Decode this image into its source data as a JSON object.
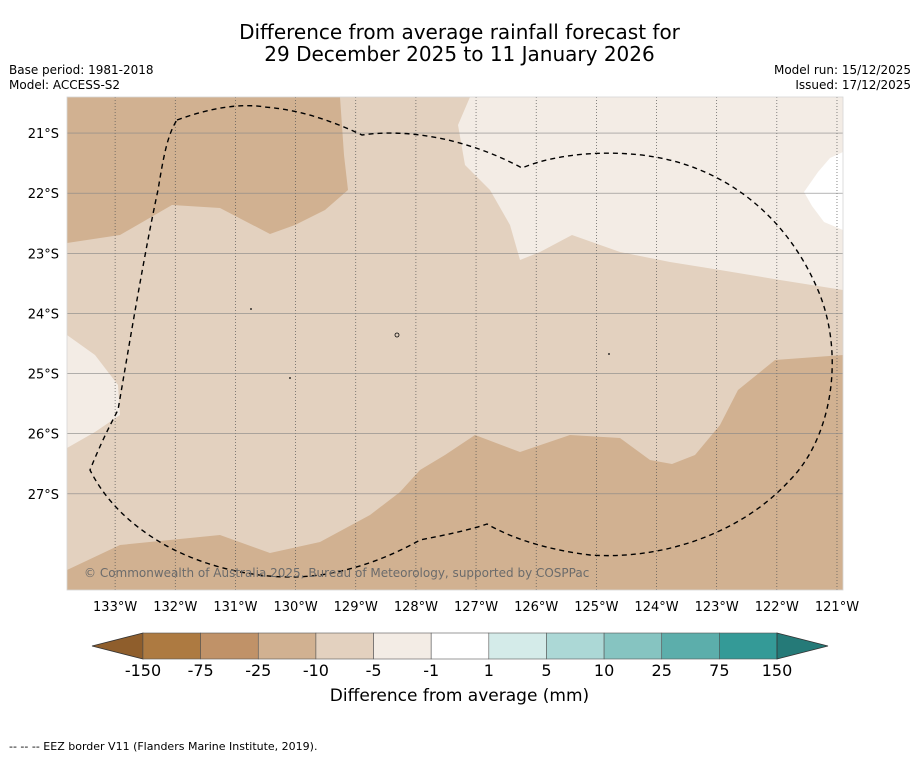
{
  "title": {
    "line1": "Difference from average rainfall forecast for",
    "line2": "29 December 2025 to 11 January 2026"
  },
  "meta": {
    "base_period": "Base period: 1981-2018",
    "model": "Model: ACCESS-S2",
    "model_run": "Model run: 15/12/2025",
    "issued": "Issued: 17/12/2025"
  },
  "map": {
    "lon_range": [
      -133.8,
      -120.9
    ],
    "lat_range": [
      -28.6,
      -20.4
    ],
    "lon_ticks": [
      {
        "value": -133,
        "label": "133°W"
      },
      {
        "value": -132,
        "label": "132°W"
      },
      {
        "value": -131,
        "label": "131°W"
      },
      {
        "value": -130,
        "label": "130°W"
      },
      {
        "value": -129,
        "label": "129°W"
      },
      {
        "value": -128,
        "label": "128°W"
      },
      {
        "value": -127,
        "label": "127°W"
      },
      {
        "value": -126,
        "label": "126°W"
      },
      {
        "value": -125,
        "label": "125°W"
      },
      {
        "value": -124,
        "label": "124°W"
      },
      {
        "value": -123,
        "label": "123°W"
      },
      {
        "value": -122,
        "label": "122°W"
      },
      {
        "value": -121,
        "label": "121°W"
      }
    ],
    "lat_ticks": [
      {
        "value": -21,
        "label": "21°S"
      },
      {
        "value": -22,
        "label": "22°S"
      },
      {
        "value": -23,
        "label": "23°S"
      },
      {
        "value": -24,
        "label": "24°S"
      },
      {
        "value": -25,
        "label": "25°S"
      },
      {
        "value": -26,
        "label": "26°S"
      },
      {
        "value": -27,
        "label": "27°S"
      }
    ],
    "copyright": "© Commonwealth of Australia 2025, Bureau of Meteorology, supported by COSPPac"
  },
  "colorbar": {
    "title": "Difference from average (mm)",
    "labels": [
      "-150",
      "-75",
      "-25",
      "-10",
      "-5",
      "-1",
      "1",
      "5",
      "10",
      "25",
      "75",
      "150"
    ],
    "colors": [
      "#ad7a41",
      "#c09268",
      "#d1b191",
      "#e3d1bf",
      "#f3ece5",
      "#ffffff",
      "#d4ebe9",
      "#acd8d6",
      "#86c4c1",
      "#5caeab",
      "#349a97"
    ],
    "under_color": "#8f5e2c",
    "over_color": "#257a78"
  },
  "footer": "--  --  -- EEZ border V11 (Flanders Marine Institute, 2019)."
}
